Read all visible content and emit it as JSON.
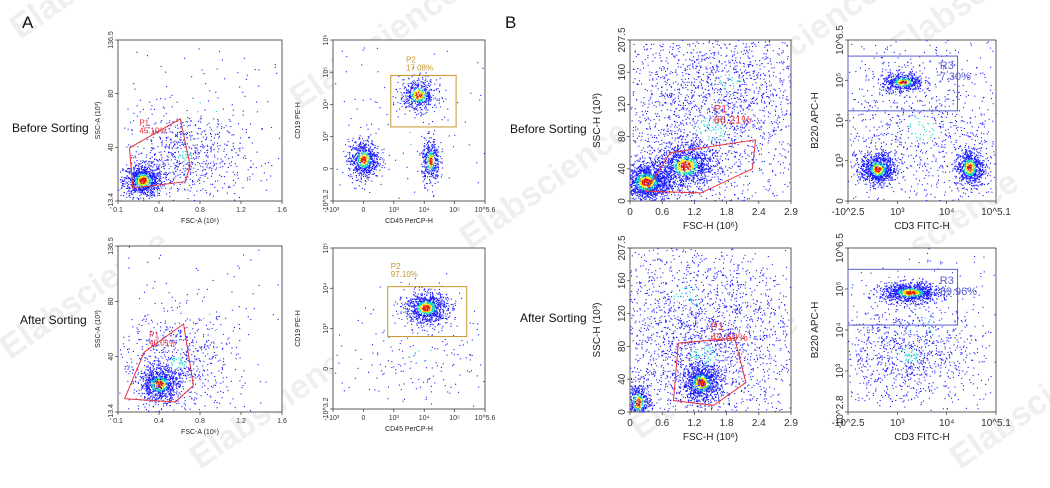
{
  "panels": [
    {
      "letter": "A"
    },
    {
      "letter": "B"
    }
  ],
  "row_labels": {
    "A": [
      "Before Sorting",
      "After Sorting"
    ],
    "B": [
      "Before Sorting",
      "After Sorting"
    ]
  },
  "watermark": "Elabscience",
  "colors": {
    "low": "#1a1aff",
    "mid": "#00d2c8",
    "high": "#ffe600",
    "peak": "#e61e00",
    "gate_red": "#e5303a",
    "gate_gold": "#c8962a",
    "gate_blue": "#5a60d0"
  },
  "chart_data": [
    {
      "id": "A-before-scatter",
      "type": "scatter",
      "xlabel": "FSC-A (10⁶)",
      "ylabel": "SSC-A (10³)",
      "xticks": [
        "0.1",
        "0.4",
        "0.8",
        "1.2",
        "1.6"
      ],
      "yticks": [
        "-13.4",
        "40",
        "80",
        "136.5"
      ],
      "xlim": [
        0.1,
        1.6
      ],
      "ylim": [
        -13.4,
        136.5
      ],
      "gate": {
        "name": "P1",
        "value": "45.10%"
      }
    },
    {
      "id": "A-before-cd19",
      "type": "scatter",
      "xlabel": "CD45 PerCP-H",
      "ylabel": "CD19 PE-H",
      "xticks": [
        "-10³",
        "0",
        "10³",
        "10⁴",
        "10⁵",
        "10^5.6"
      ],
      "yticks": [
        "-10^3.2",
        "0",
        "10³",
        "10⁴",
        "10⁵",
        "10⁶"
      ],
      "gate": {
        "name": "P2",
        "value": "17.08%"
      }
    },
    {
      "id": "A-after-scatter",
      "type": "scatter",
      "xlabel": "FSC-A (10⁶)",
      "ylabel": "SSC-A (10³)",
      "xticks": [
        "0.1",
        "0.4",
        "0.8",
        "1.2",
        "1.6"
      ],
      "yticks": [
        "-13.4",
        "40",
        "80",
        "136.5"
      ],
      "xlim": [
        0.1,
        1.6
      ],
      "ylim": [
        -13.4,
        136.5
      ],
      "gate": {
        "name": "P1",
        "value": "40.01%"
      }
    },
    {
      "id": "A-after-cd19",
      "type": "scatter",
      "xlabel": "CD45 PerCP-H",
      "ylabel": "CD19 PE-H",
      "xticks": [
        "-10³",
        "0",
        "10³",
        "10⁴",
        "10⁵",
        "10^5.6"
      ],
      "yticks": [
        "-10^3.2",
        "0",
        "10³",
        "10⁴",
        "10⁵"
      ],
      "gate": {
        "name": "P2",
        "value": "97.10%"
      }
    },
    {
      "id": "B-before-scatter",
      "type": "scatter",
      "xlabel": "FSC-H (10⁶)",
      "ylabel": "SSC-H (10³)",
      "xticks": [
        "0",
        "0.6",
        "1.2",
        "1.8",
        "2.4",
        "2.9"
      ],
      "yticks": [
        "0",
        "40",
        "80",
        "120",
        "160",
        "207.5"
      ],
      "xlim": [
        0,
        2.9
      ],
      "ylim": [
        0,
        207.5
      ],
      "gate": {
        "name": "P1",
        "value": "66.21%"
      }
    },
    {
      "id": "B-before-b220",
      "type": "scatter",
      "xlabel": "CD3 FITC-H",
      "ylabel": "B220 APC-H",
      "xticks": [
        "-10^2.5",
        "10³",
        "10⁴",
        "10^5.1"
      ],
      "yticks": [
        "0",
        "10³",
        "10⁴",
        "10⁵",
        "10^6.5"
      ],
      "gate": {
        "name": "R3",
        "value": "7.30%"
      }
    },
    {
      "id": "B-after-scatter",
      "type": "scatter",
      "xlabel": "FSC-H (10⁶)",
      "ylabel": "SSC-H (10³)",
      "xticks": [
        "0",
        "0.6",
        "1.2",
        "1.8",
        "2.4",
        "2.9"
      ],
      "yticks": [
        "0",
        "40",
        "80",
        "120",
        "160",
        "207.5"
      ],
      "xlim": [
        0,
        2.9
      ],
      "ylim": [
        0,
        207.5
      ],
      "gate": {
        "name": "P1",
        "value": "42.69%"
      }
    },
    {
      "id": "B-after-b220",
      "type": "scatter",
      "xlabel": "CD3 FITC-H",
      "ylabel": "B220 APC-H",
      "xticks": [
        "-10^2.5",
        "10³",
        "10⁴",
        "10^5.1"
      ],
      "yticks": [
        "-10^2.8",
        "10³",
        "10⁴",
        "10⁵",
        "10^6.5"
      ],
      "gate": {
        "name": "R3",
        "value": "89.96%"
      }
    }
  ]
}
